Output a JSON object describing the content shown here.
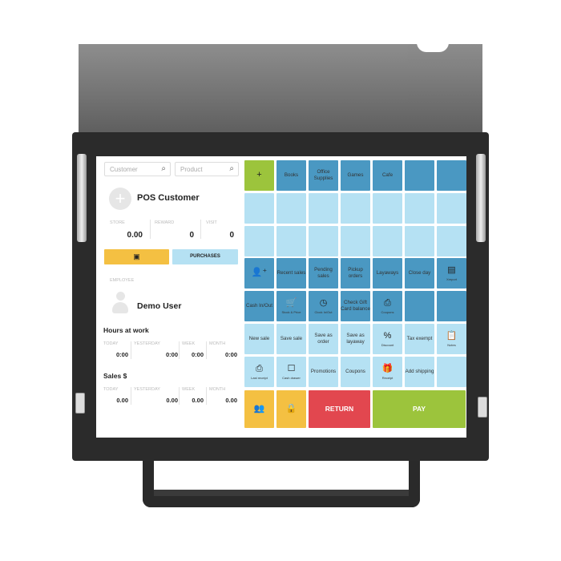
{
  "left": {
    "customer_placeholder": "Customer",
    "product_placeholder": "Product",
    "customer_name": "POS Customer",
    "store_label": "STORE",
    "store_value": "0.00",
    "reward_label": "REWARD",
    "reward_value": "0",
    "visit_label": "VISIT",
    "visit_value": "0",
    "purchases_label": "PURCHASES",
    "employee_label": "EMPLOYEE",
    "employee_name": "Demo User",
    "hours_title": "Hours at work",
    "sales_title": "Sales $",
    "period_labels": [
      "TODAY",
      "YESTERDAY",
      "WEEK",
      "MONTH"
    ],
    "hours_values": [
      "0:00",
      "0:00",
      "0:00",
      "0:00"
    ],
    "sales_values": [
      "0.00",
      "0.00",
      "0.00",
      "0.00"
    ]
  },
  "colors": {
    "dark": "#4a98c2",
    "light": "#b5e1f3",
    "green": "#9cc43c",
    "yellow": "#f4c042",
    "red": "#e2474f"
  },
  "tiles": [
    [
      {
        "c": "green",
        "icon": "+",
        "n": "add"
      },
      {
        "c": "dark",
        "t": "Books"
      },
      {
        "c": "dark",
        "t": "Office Supplies"
      },
      {
        "c": "dark",
        "t": "Games"
      },
      {
        "c": "dark",
        "t": "Cafe"
      },
      {
        "c": "dark"
      },
      {
        "c": "dark"
      }
    ],
    [
      {
        "c": "light"
      },
      {
        "c": "light"
      },
      {
        "c": "light"
      },
      {
        "c": "light"
      },
      {
        "c": "light"
      },
      {
        "c": "light"
      },
      {
        "c": "light"
      }
    ],
    [
      {
        "c": "light"
      },
      {
        "c": "light"
      },
      {
        "c": "light"
      },
      {
        "c": "light"
      },
      {
        "c": "light"
      },
      {
        "c": "light"
      },
      {
        "c": "light"
      }
    ],
    [
      {
        "c": "dark",
        "icon": "👤⁺",
        "n": "add-employee"
      },
      {
        "c": "dark",
        "t": "Recent sales"
      },
      {
        "c": "dark",
        "t": "Pending sales"
      },
      {
        "c": "dark",
        "t": "Pickup orders"
      },
      {
        "c": "dark",
        "t": "Layaways"
      },
      {
        "c": "dark",
        "t": "Close day"
      },
      {
        "c": "dark",
        "icon": "▤",
        "s": "Xreport",
        "n": "xreport"
      }
    ],
    [
      {
        "c": "dark",
        "t": "Cash In/Out"
      },
      {
        "c": "dark",
        "icon": "🛒",
        "s": "Stock & Price",
        "n": "stock-price"
      },
      {
        "c": "dark",
        "icon": "◷",
        "s": "Clock In/Out",
        "n": "clock"
      },
      {
        "c": "dark",
        "t": "Check Gift Card balance"
      },
      {
        "c": "dark",
        "icon": "⎙",
        "s": "Coupons",
        "n": "coupons-print"
      },
      {
        "c": "dark"
      },
      {
        "c": "dark"
      }
    ],
    [
      {
        "c": "light",
        "t": "New sale"
      },
      {
        "c": "light",
        "t": "Save sale"
      },
      {
        "c": "light",
        "t": "Save as order"
      },
      {
        "c": "light",
        "t": "Save as layaway"
      },
      {
        "c": "light",
        "icon": "%",
        "s": "Discount",
        "n": "discount"
      },
      {
        "c": "light",
        "t": "Tax exempt"
      },
      {
        "c": "light",
        "icon": "📋",
        "s": "Notes",
        "n": "notes"
      }
    ],
    [
      {
        "c": "light",
        "icon": "⎙",
        "s": "Last receipt",
        "n": "last-receipt"
      },
      {
        "c": "light",
        "icon": "☐",
        "s": "Cash drawer",
        "n": "cash-drawer"
      },
      {
        "c": "light",
        "t": "Promotions"
      },
      {
        "c": "light",
        "t": "Coupons"
      },
      {
        "c": "light",
        "icon": "🎁",
        "s": "Receipt",
        "n": "receipt"
      },
      {
        "c": "light",
        "t": "Add shipping"
      },
      {
        "c": "light"
      }
    ]
  ],
  "bottom": {
    "return_label": "RETURN",
    "pay_label": "PAY"
  }
}
